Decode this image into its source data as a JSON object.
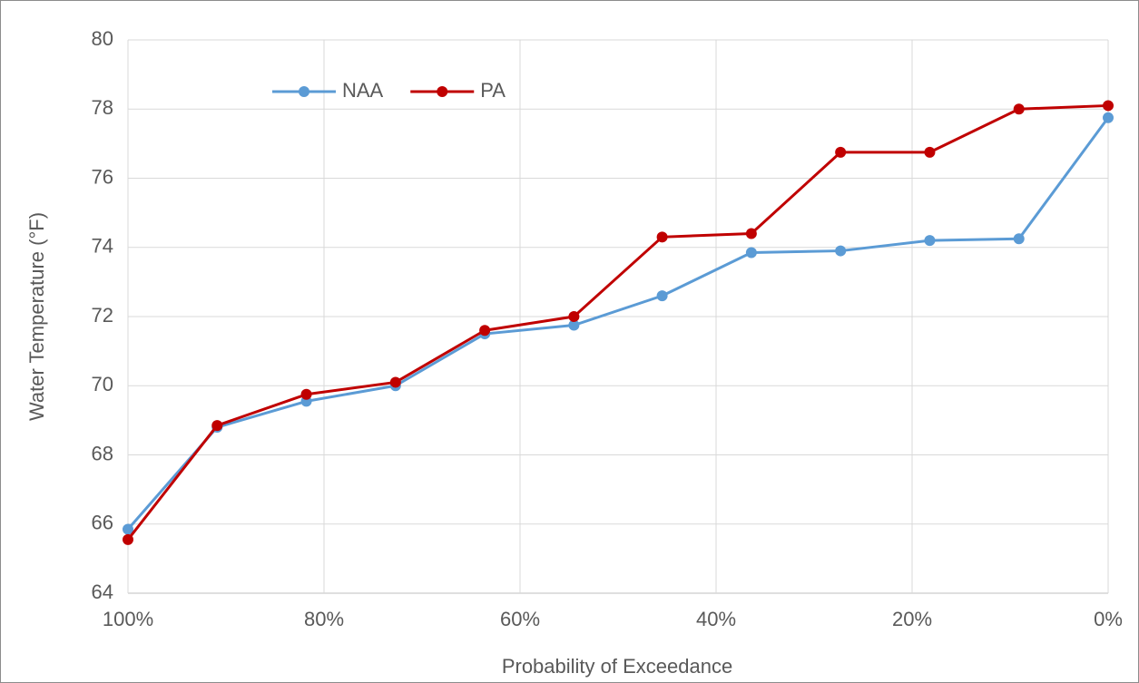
{
  "chart_data": {
    "type": "line",
    "x_label": "Probability of Exceedance",
    "y_label": "Water Temperature (°F)",
    "x": [
      100,
      90.9,
      81.8,
      72.7,
      63.6,
      54.5,
      45.5,
      36.4,
      27.3,
      18.2,
      9.1,
      0
    ],
    "series": [
      {
        "name": "NAA",
        "color": "#5b9bd5",
        "values": [
          65.85,
          68.8,
          69.55,
          70.0,
          71.5,
          71.75,
          72.6,
          73.85,
          73.9,
          74.2,
          74.25,
          77.75
        ]
      },
      {
        "name": "PA",
        "color": "#c00000",
        "values": [
          65.55,
          68.85,
          69.75,
          70.1,
          71.6,
          72.0,
          74.3,
          74.4,
          76.75,
          76.75,
          78.0,
          78.1
        ]
      }
    ],
    "xlim": [
      100,
      0
    ],
    "xticks": [
      {
        "value": 100,
        "label": "100%"
      },
      {
        "value": 80,
        "label": "80%"
      },
      {
        "value": 60,
        "label": "60%"
      },
      {
        "value": 40,
        "label": "40%"
      },
      {
        "value": 20,
        "label": "20%"
      },
      {
        "value": 0,
        "label": "0%"
      }
    ],
    "ylim": [
      64,
      80
    ],
    "yticks": [
      64,
      66,
      68,
      70,
      72,
      74,
      76,
      78,
      80
    ],
    "grid": true,
    "legend": "top"
  }
}
